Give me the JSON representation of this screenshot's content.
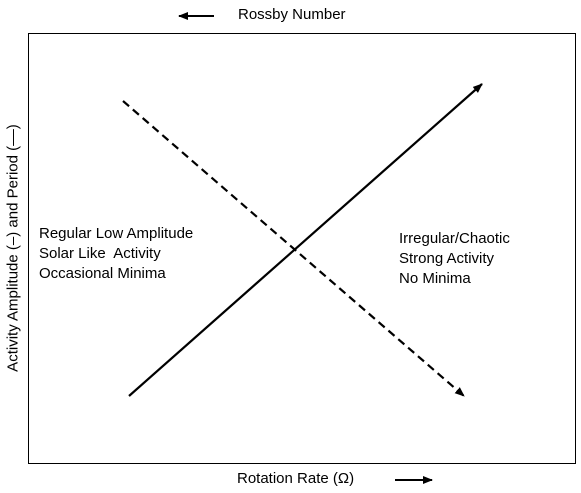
{
  "diagram": {
    "top_axis_label": "Rossby Number",
    "bottom_axis_label": "Rotation Rate (Ω)",
    "y_axis_label": "Activity Amplitude (–) and Period (––)",
    "left_region": {
      "lines": [
        "Regular Low Amplitude",
        "Solar Like  Activity",
        "Occasional Minima"
      ]
    },
    "right_region": {
      "lines": [
        "Irregular/Chaotic",
        "Strong Activity",
        "No Minima"
      ]
    },
    "colors": {
      "ink": "#000000",
      "background": "#ffffff"
    }
  }
}
